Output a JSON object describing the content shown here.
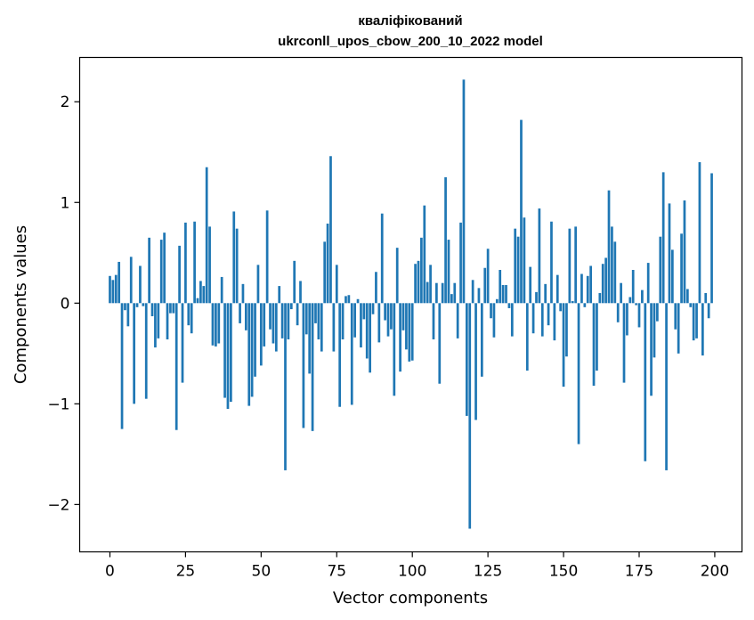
{
  "chart_data": {
    "type": "bar",
    "title_line1": "кваліфікований",
    "title_line2": "ukrconll_upos_cbow_200_10_2022 model",
    "xlabel": "Vector components",
    "ylabel": "Components values",
    "xlim": [
      -10,
      209
    ],
    "ylim": [
      -2.47,
      2.44
    ],
    "xticks": [
      0,
      25,
      50,
      75,
      100,
      125,
      150,
      175,
      200
    ],
    "yticks": [
      -2,
      -1,
      0,
      1,
      2
    ],
    "xtick_labels": [
      "0",
      "25",
      "50",
      "75",
      "100",
      "125",
      "150",
      "175",
      "200"
    ],
    "ytick_labels": [
      "−2",
      "−1",
      "0",
      "1",
      "2"
    ],
    "bar_color": "#1f77b4",
    "grid": false,
    "x": [
      0,
      1,
      2,
      3,
      4,
      5,
      6,
      7,
      8,
      9,
      10,
      11,
      12,
      13,
      14,
      15,
      16,
      17,
      18,
      19,
      20,
      21,
      22,
      23,
      24,
      25,
      26,
      27,
      28,
      29,
      30,
      31,
      32,
      33,
      34,
      35,
      36,
      37,
      38,
      39,
      40,
      41,
      42,
      43,
      44,
      45,
      46,
      47,
      48,
      49,
      50,
      51,
      52,
      53,
      54,
      55,
      56,
      57,
      58,
      59,
      60,
      61,
      62,
      63,
      64,
      65,
      66,
      67,
      68,
      69,
      70,
      71,
      72,
      73,
      74,
      75,
      76,
      77,
      78,
      79,
      80,
      81,
      82,
      83,
      84,
      85,
      86,
      87,
      88,
      89,
      90,
      91,
      92,
      93,
      94,
      95,
      96,
      97,
      98,
      99,
      100,
      101,
      102,
      103,
      104,
      105,
      106,
      107,
      108,
      109,
      110,
      111,
      112,
      113,
      114,
      115,
      116,
      117,
      118,
      119,
      120,
      121,
      122,
      123,
      124,
      125,
      126,
      127,
      128,
      129,
      130,
      131,
      132,
      133,
      134,
      135,
      136,
      137,
      138,
      139,
      140,
      141,
      142,
      143,
      144,
      145,
      146,
      147,
      148,
      149,
      150,
      151,
      152,
      153,
      154,
      155,
      156,
      157,
      158,
      159,
      160,
      161,
      162,
      163,
      164,
      165,
      166,
      167,
      168,
      169,
      170,
      171,
      172,
      173,
      174,
      175,
      176,
      177,
      178,
      179,
      180,
      181,
      182,
      183,
      184,
      185,
      186,
      187,
      188,
      189,
      190,
      191,
      192,
      193,
      194,
      195,
      196,
      197,
      198,
      199
    ],
    "values": [
      0.27,
      0.23,
      0.28,
      0.41,
      -1.25,
      -0.07,
      -0.23,
      0.46,
      -1.0,
      -0.04,
      0.37,
      -0.03,
      -0.95,
      0.65,
      -0.13,
      -0.44,
      -0.35,
      0.63,
      0.7,
      -0.36,
      -0.1,
      -0.1,
      -1.26,
      0.57,
      -0.79,
      0.8,
      -0.22,
      -0.3,
      0.81,
      0.05,
      0.22,
      0.17,
      1.35,
      0.76,
      -0.42,
      -0.43,
      -0.4,
      0.26,
      -0.94,
      -1.05,
      -0.98,
      0.91,
      0.74,
      -0.2,
      0.19,
      -0.27,
      -1.02,
      -0.93,
      -0.73,
      0.38,
      -0.62,
      -0.43,
      0.92,
      -0.26,
      -0.4,
      -0.48,
      0.17,
      -0.35,
      -1.66,
      -0.36,
      -0.06,
      0.42,
      -0.22,
      0.22,
      -1.24,
      -0.31,
      -0.7,
      -1.27,
      -0.2,
      -0.36,
      -0.48,
      0.61,
      0.79,
      1.46,
      -0.48,
      0.38,
      -1.03,
      -0.36,
      0.07,
      0.08,
      -1.01,
      -0.34,
      0.04,
      -0.44,
      -0.16,
      -0.55,
      -0.69,
      -0.11,
      0.31,
      -0.39,
      0.89,
      -0.17,
      -0.33,
      -0.26,
      -0.92,
      0.55,
      -0.68,
      -0.27,
      -0.46,
      -0.58,
      -0.57,
      0.39,
      0.42,
      0.65,
      0.97,
      0.21,
      0.38,
      -0.36,
      0.2,
      -0.8,
      0.2,
      1.25,
      0.63,
      0.09,
      0.2,
      -0.35,
      0.8,
      2.22,
      -1.12,
      -2.24,
      0.23,
      -1.16,
      0.15,
      -0.73,
      0.35,
      0.54,
      -0.15,
      -0.34,
      0.04,
      0.33,
      0.18,
      0.18,
      -0.05,
      -0.33,
      0.74,
      0.66,
      1.82,
      0.85,
      -0.67,
      0.36,
      -0.3,
      0.11,
      0.94,
      -0.33,
      0.19,
      -0.22,
      0.81,
      -0.37,
      0.28,
      -0.08,
      -0.83,
      -0.53,
      0.74,
      0.02,
      0.76,
      -1.4,
      0.29,
      -0.04,
      0.27,
      0.37,
      -0.82,
      -0.67,
      0.1,
      0.39,
      0.45,
      1.12,
      0.76,
      0.61,
      -0.19,
      0.2,
      -0.79,
      -0.32,
      0.06,
      0.33,
      -0.02,
      -0.24,
      0.13,
      -1.57,
      0.4,
      -0.92,
      -0.54,
      -0.18,
      0.66,
      1.3,
      -1.66,
      0.99,
      0.53,
      -0.26,
      -0.5,
      0.69,
      1.02,
      0.14,
      -0.04,
      -0.37,
      -0.35,
      1.4,
      -0.52,
      0.1,
      -0.15,
      1.29
    ]
  }
}
